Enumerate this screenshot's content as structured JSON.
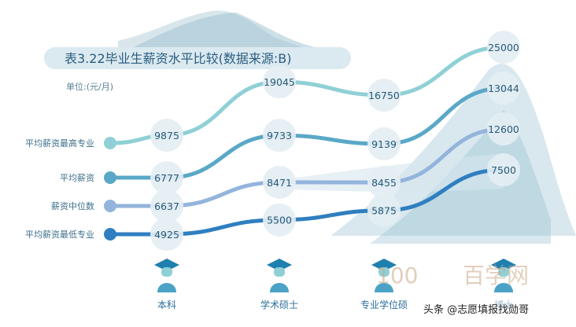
{
  "chart_data": {
    "type": "line",
    "title": "表3.22毕业生薪资水平比较(数据来源:B)",
    "unit_label": "单位:(元/月)",
    "categories": [
      "本科",
      "学术硕士",
      "专业学位硕士",
      "博士"
    ],
    "series": [
      {
        "name": "平均薪资最高专业",
        "values": [
          9875,
          19045,
          16750,
          25000
        ],
        "color": "#8fd0d6"
      },
      {
        "name": "平均薪资",
        "values": [
          6777,
          9733,
          9139,
          13044
        ],
        "color": "#5aa8c8"
      },
      {
        "name": "薪资中位数",
        "values": [
          6637,
          8471,
          8455,
          12600
        ],
        "color": "#93b4dc"
      },
      {
        "name": "平均薪资最低专业",
        "values": [
          4925,
          5500,
          5875,
          7500
        ],
        "color": "#2f7fc0"
      }
    ],
    "category_labels_visible": [
      "本科",
      "学术硕士",
      "专业学位硕",
      "博士"
    ]
  },
  "watermark": {
    "logo_text": "100",
    "site_text": "百学网",
    "credit": "头条 @志愿填报找勋哥"
  }
}
